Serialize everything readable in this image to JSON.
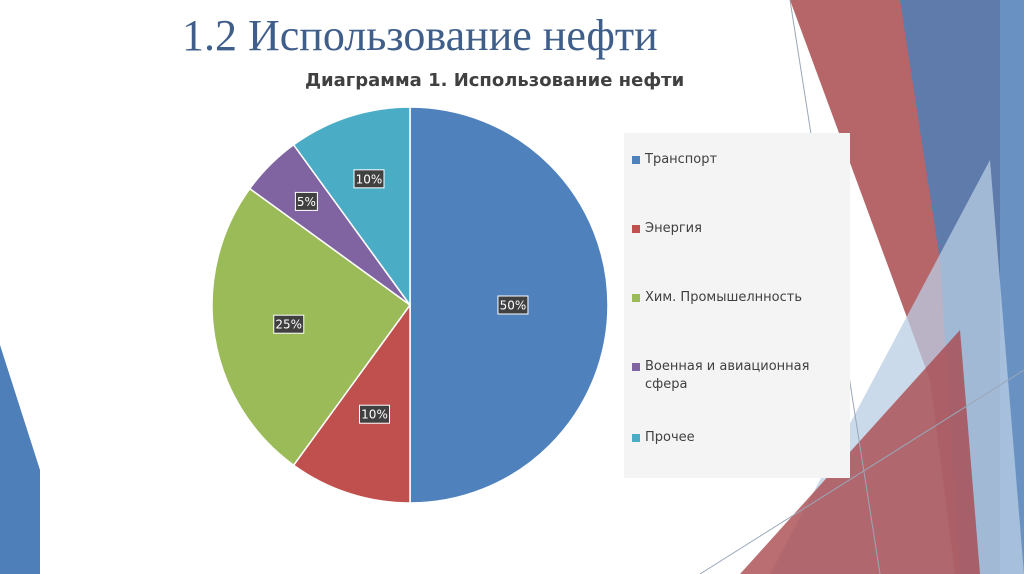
{
  "slide": {
    "title": "1.2 Использование нефти"
  },
  "chart_data": {
    "type": "pie",
    "title": "Диаграмма 1. Использование нефти",
    "categories": [
      "Транспорт",
      "Энергия",
      "Хим. Промышелнность",
      "Военная и авиационная сфера",
      "Прочее"
    ],
    "values": [
      50,
      10,
      25,
      5,
      10
    ],
    "labels": [
      "50%",
      "10%",
      "25%",
      "5%",
      "10%"
    ],
    "colors": [
      "#4f81bd",
      "#c0504d",
      "#9bbb59",
      "#8064a2",
      "#4bacc6"
    ],
    "legend_position": "right"
  },
  "decor": {
    "colors": {
      "red": "#a94a4f",
      "blue": "#4f7fb8",
      "light_blue": "#b9cde4"
    }
  }
}
